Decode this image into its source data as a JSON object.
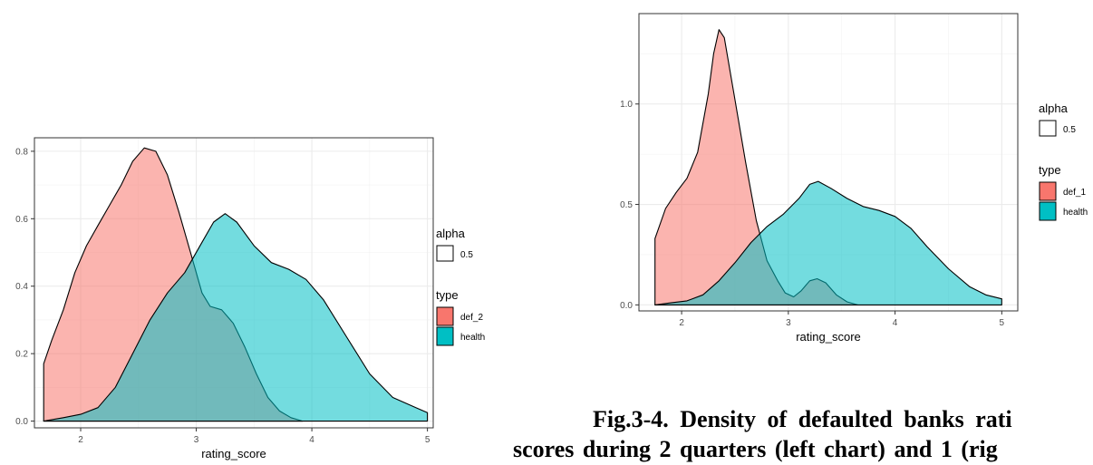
{
  "caption": {
    "line1": "Fig.3-4. Density of defaulted banks rati",
    "line2": "scores during 2 quarters (left chart) and 1 (rig"
  },
  "colors": {
    "fill_red": "#f8766d",
    "fill_teal": "#00bfc4",
    "outline": "#000000",
    "panel_border": "#333333",
    "grid": "#ebebeb"
  },
  "chart_data": [
    {
      "type": "area",
      "title": "",
      "xlabel": "rating_score",
      "ylabel": "",
      "xlim": [
        1.6,
        5.05
      ],
      "ylim": [
        -0.02,
        0.84
      ],
      "xticks": [
        2,
        3,
        4,
        5
      ],
      "xtick_labels": [
        "2",
        "3",
        "4",
        "5"
      ],
      "yticks": [
        0.0,
        0.2,
        0.4,
        0.6,
        0.8
      ],
      "ytick_labels": [
        "0.0",
        "0.2",
        "0.4",
        "0.6",
        "0.8"
      ],
      "grid": true,
      "legend_position": "right",
      "legend": {
        "alpha_title": "alpha",
        "alpha_value": "0.5",
        "type_title": "type",
        "entries": [
          {
            "label": "def_2",
            "color": "#f8766d"
          },
          {
            "label": "health",
            "color": "#00bfc4"
          }
        ]
      },
      "series": [
        {
          "name": "def_2",
          "color": "#f8766d",
          "points": [
            [
              1.68,
              0.17
            ],
            [
              1.75,
              0.24
            ],
            [
              1.85,
              0.33
            ],
            [
              1.95,
              0.44
            ],
            [
              2.05,
              0.52
            ],
            [
              2.15,
              0.58
            ],
            [
              2.25,
              0.64
            ],
            [
              2.35,
              0.7
            ],
            [
              2.45,
              0.77
            ],
            [
              2.55,
              0.81
            ],
            [
              2.65,
              0.8
            ],
            [
              2.75,
              0.73
            ],
            [
              2.85,
              0.62
            ],
            [
              2.95,
              0.5
            ],
            [
              3.05,
              0.38
            ],
            [
              3.12,
              0.34
            ],
            [
              3.22,
              0.33
            ],
            [
              3.32,
              0.29
            ],
            [
              3.42,
              0.22
            ],
            [
              3.52,
              0.14
            ],
            [
              3.62,
              0.07
            ],
            [
              3.72,
              0.03
            ],
            [
              3.82,
              0.01
            ],
            [
              3.92,
              0.0
            ]
          ]
        },
        {
          "name": "health",
          "color": "#00bfc4",
          "points": [
            [
              1.68,
              0.0
            ],
            [
              1.85,
              0.01
            ],
            [
              2.0,
              0.02
            ],
            [
              2.15,
              0.04
            ],
            [
              2.3,
              0.1
            ],
            [
              2.45,
              0.2
            ],
            [
              2.6,
              0.3
            ],
            [
              2.75,
              0.38
            ],
            [
              2.9,
              0.44
            ],
            [
              3.05,
              0.53
            ],
            [
              3.15,
              0.59
            ],
            [
              3.25,
              0.615
            ],
            [
              3.35,
              0.59
            ],
            [
              3.5,
              0.52
            ],
            [
              3.65,
              0.47
            ],
            [
              3.8,
              0.45
            ],
            [
              3.95,
              0.42
            ],
            [
              4.1,
              0.36
            ],
            [
              4.3,
              0.25
            ],
            [
              4.5,
              0.14
            ],
            [
              4.7,
              0.07
            ],
            [
              4.9,
              0.04
            ],
            [
              5.0,
              0.025
            ]
          ]
        }
      ]
    },
    {
      "type": "area",
      "title": "",
      "xlabel": "rating_score",
      "ylabel": "",
      "xlim": [
        1.6,
        5.15
      ],
      "ylim": [
        -0.03,
        1.45
      ],
      "xticks": [
        2,
        3,
        4,
        5
      ],
      "xtick_labels": [
        "2",
        "3",
        "4",
        "5"
      ],
      "yticks": [
        0.0,
        0.5,
        1.0
      ],
      "ytick_labels": [
        "0.0",
        "0.5",
        "1.0"
      ],
      "grid": true,
      "legend_position": "right",
      "legend": {
        "alpha_title": "alpha",
        "alpha_value": "0.5",
        "type_title": "type",
        "entries": [
          {
            "label": "def_1",
            "color": "#f8766d"
          },
          {
            "label": "health",
            "color": "#00bfc4"
          }
        ]
      },
      "series": [
        {
          "name": "def_1",
          "color": "#f8766d",
          "points": [
            [
              1.75,
              0.33
            ],
            [
              1.85,
              0.48
            ],
            [
              1.95,
              0.56
            ],
            [
              2.05,
              0.63
            ],
            [
              2.15,
              0.76
            ],
            [
              2.25,
              1.05
            ],
            [
              2.3,
              1.25
            ],
            [
              2.35,
              1.37
            ],
            [
              2.4,
              1.33
            ],
            [
              2.5,
              1.02
            ],
            [
              2.6,
              0.71
            ],
            [
              2.7,
              0.42
            ],
            [
              2.8,
              0.22
            ],
            [
              2.9,
              0.12
            ],
            [
              2.97,
              0.06
            ],
            [
              3.05,
              0.04
            ],
            [
              3.12,
              0.07
            ],
            [
              3.2,
              0.12
            ],
            [
              3.27,
              0.13
            ],
            [
              3.35,
              0.11
            ],
            [
              3.45,
              0.05
            ],
            [
              3.55,
              0.015
            ],
            [
              3.65,
              0.0
            ]
          ]
        },
        {
          "name": "health",
          "color": "#00bfc4",
          "points": [
            [
              1.75,
              0.0
            ],
            [
              1.9,
              0.01
            ],
            [
              2.05,
              0.02
            ],
            [
              2.2,
              0.05
            ],
            [
              2.35,
              0.12
            ],
            [
              2.5,
              0.21
            ],
            [
              2.65,
              0.31
            ],
            [
              2.8,
              0.39
            ],
            [
              2.95,
              0.45
            ],
            [
              3.1,
              0.53
            ],
            [
              3.2,
              0.6
            ],
            [
              3.28,
              0.615
            ],
            [
              3.4,
              0.58
            ],
            [
              3.55,
              0.53
            ],
            [
              3.7,
              0.49
            ],
            [
              3.85,
              0.47
            ],
            [
              4.0,
              0.44
            ],
            [
              4.15,
              0.38
            ],
            [
              4.3,
              0.29
            ],
            [
              4.5,
              0.18
            ],
            [
              4.7,
              0.09
            ],
            [
              4.85,
              0.05
            ],
            [
              5.0,
              0.03
            ]
          ]
        }
      ]
    }
  ]
}
